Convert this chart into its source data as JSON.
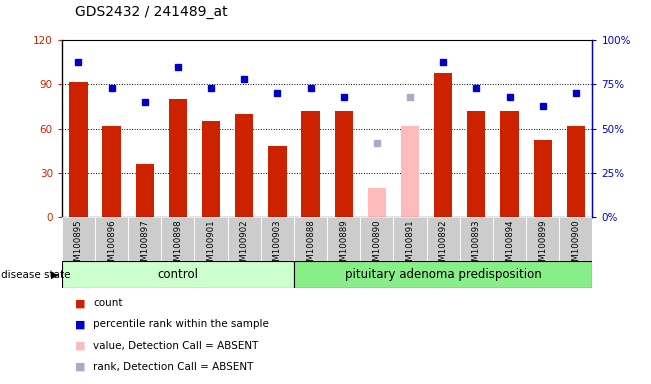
{
  "title": "GDS2432 / 241489_at",
  "samples": [
    "GSM100895",
    "GSM100896",
    "GSM100897",
    "GSM100898",
    "GSM100901",
    "GSM100902",
    "GSM100903",
    "GSM100888",
    "GSM100889",
    "GSM100890",
    "GSM100891",
    "GSM100892",
    "GSM100893",
    "GSM100894",
    "GSM100899",
    "GSM100900"
  ],
  "count_values": [
    92,
    62,
    36,
    80,
    65,
    70,
    48,
    72,
    72,
    null,
    null,
    98,
    72,
    72,
    52,
    62
  ],
  "absent_value_values": [
    null,
    null,
    null,
    null,
    null,
    null,
    null,
    null,
    null,
    20,
    62,
    null,
    null,
    null,
    null,
    null
  ],
  "rank_values": [
    88,
    73,
    65,
    85,
    73,
    78,
    70,
    73,
    68,
    null,
    null,
    88,
    73,
    68,
    63,
    70
  ],
  "absent_rank_values": [
    null,
    null,
    null,
    null,
    null,
    null,
    null,
    null,
    null,
    42,
    68,
    null,
    null,
    null,
    null,
    null
  ],
  "control_count": 7,
  "disease_count": 9,
  "control_label": "control",
  "disease_label": "pituitary adenoma predisposition",
  "disease_state_label": "disease state",
  "ylim_left": [
    0,
    120
  ],
  "ylim_right": [
    0,
    100
  ],
  "yticks_left": [
    0,
    30,
    60,
    90,
    120
  ],
  "yticks_right": [
    0,
    25,
    50,
    75,
    100
  ],
  "ytick_labels_left": [
    "0",
    "30",
    "60",
    "90",
    "120"
  ],
  "ytick_labels_right": [
    "0%",
    "25%",
    "50%",
    "75%",
    "100%"
  ],
  "bar_color_normal": "#cc2200",
  "bar_color_absent": "#ffbbbb",
  "rank_color_normal": "#0000cc",
  "rank_color_absent": "#aaaacc",
  "control_bg": "#ccffcc",
  "disease_bg": "#88ee88",
  "xticklabel_bg": "#cccccc",
  "legend_items": [
    {
      "color": "#cc2200",
      "label": "count"
    },
    {
      "color": "#0000cc",
      "label": "percentile rank within the sample"
    },
    {
      "color": "#ffbbbb",
      "label": "value, Detection Call = ABSENT"
    },
    {
      "color": "#aaaacc",
      "label": "rank, Detection Call = ABSENT"
    }
  ]
}
